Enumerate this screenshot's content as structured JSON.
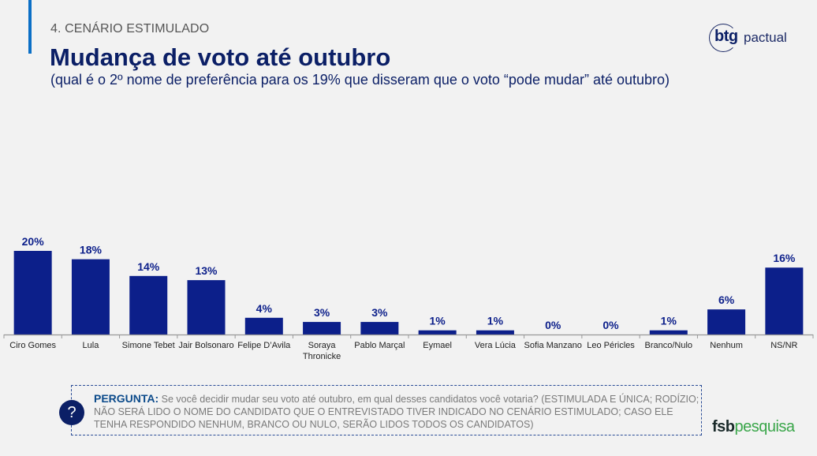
{
  "header": {
    "section": "4. CENÁRIO ESTIMULADO",
    "title": "Mudança de voto até outubro",
    "subtitle": "(qual é o 2º nome de preferência para os 19% que disseram que o voto “pode mudar” até outubro)"
  },
  "logos": {
    "btg_bold": "btg",
    "btg_light": "pactual",
    "fsb_bold": "fsb",
    "fsb_light": "pesquisa"
  },
  "question": {
    "label": "PERGUNTA:",
    "text": " Se você decidir mudar seu voto até outubro, em qual desses candidatos você votaria? (ESTIMULADA E ÚNICA; RODÍZIO; NÃO SERÁ LIDO O NOME DO CANDIDATO QUE O ENTREVISTADO TIVER INDICADO NO CENÁRIO ESTIMULADO; CASO ELE TENHA RESPONDIDO NENHUM, BRANCO OU NULO, SERÃO LIDOS TODOS OS CANDIDATOS)",
    "icon": "question-mark-icon",
    "icon_glyph": "?"
  },
  "colors": {
    "bar": "#0c1f8a",
    "title": "#0b1f66",
    "accent": "#0b6fc6"
  },
  "chart_data": {
    "type": "bar",
    "title": "Mudança de voto até outubro",
    "xlabel": "",
    "ylabel": "",
    "ylim": [
      0,
      20
    ],
    "grid": false,
    "categories": [
      "Ciro Gomes",
      "Lula",
      "Simone Tebet",
      "Jair Bolsonaro",
      "Felipe D’Avila",
      "Soraya Thronicke",
      "Pablo Marçal",
      "Eymael",
      "Vera Lúcia",
      "Sofia Manzano",
      "Leo Péricles",
      "Branco/Nulo",
      "Nenhum",
      "NS/NR"
    ],
    "category_lines": [
      [
        "Ciro Gomes"
      ],
      [
        "Lula"
      ],
      [
        "Simone Tebet"
      ],
      [
        "Jair Bolsonaro"
      ],
      [
        "Felipe D’Avila"
      ],
      [
        "Soraya",
        "Thronicke"
      ],
      [
        "Pablo Marçal"
      ],
      [
        "Eymael"
      ],
      [
        "Vera Lúcia"
      ],
      [
        "Sofia Manzano"
      ],
      [
        "Leo Péricles"
      ],
      [
        "Branco/Nulo"
      ],
      [
        "Nenhum"
      ],
      [
        "NS/NR"
      ]
    ],
    "values": [
      20,
      18,
      14,
      13,
      4,
      3,
      3,
      1,
      1,
      0,
      0,
      1,
      6,
      16
    ],
    "labels": [
      "20%",
      "18%",
      "14%",
      "13%",
      "4%",
      "3%",
      "3%",
      "1%",
      "1%",
      "0%",
      "0%",
      "1%",
      "6%",
      "16%"
    ]
  }
}
